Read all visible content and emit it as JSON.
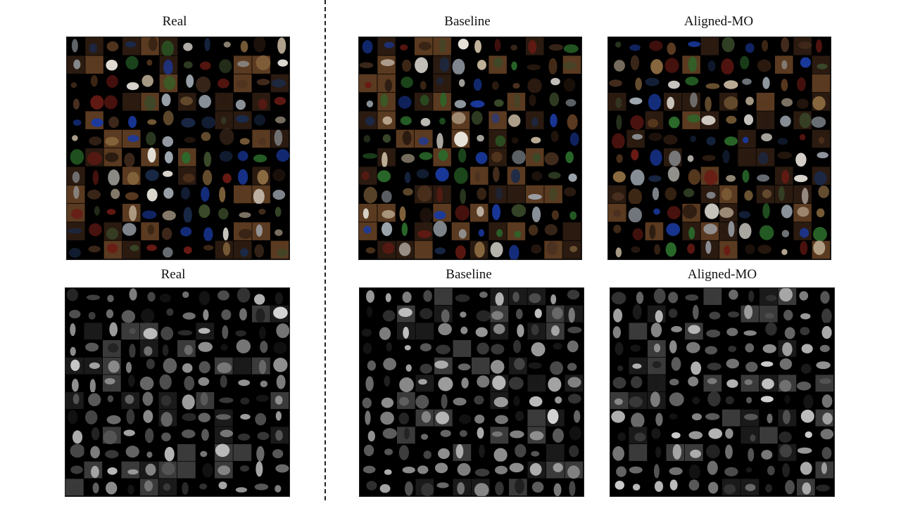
{
  "figure": {
    "rows": [
      {
        "name": "color-samples",
        "colors": [
          "#000000",
          "#2a1a10",
          "#5a3a20",
          "#8a6a40",
          "#3a4a2a",
          "#1a2a4a",
          "#6a1a14",
          "#c8b8a0",
          "#e8e4dc",
          "#2a6a2a",
          "#1a3aa0",
          "#a0a8b0",
          "#4a3020"
        ],
        "panels": [
          {
            "title": "Real"
          },
          {
            "title": "Baseline"
          },
          {
            "title": "Aligned-MO"
          }
        ]
      },
      {
        "name": "grayscale-samples",
        "colors": [
          "#000000",
          "#1a1a1a",
          "#3a3a3a",
          "#5a5a5a",
          "#7a7a7a",
          "#9a9a9a",
          "#bababa",
          "#d6d6d6"
        ],
        "panels": [
          {
            "title": "Real"
          },
          {
            "title": "Baseline"
          },
          {
            "title": "Aligned-MO"
          }
        ]
      }
    ]
  }
}
